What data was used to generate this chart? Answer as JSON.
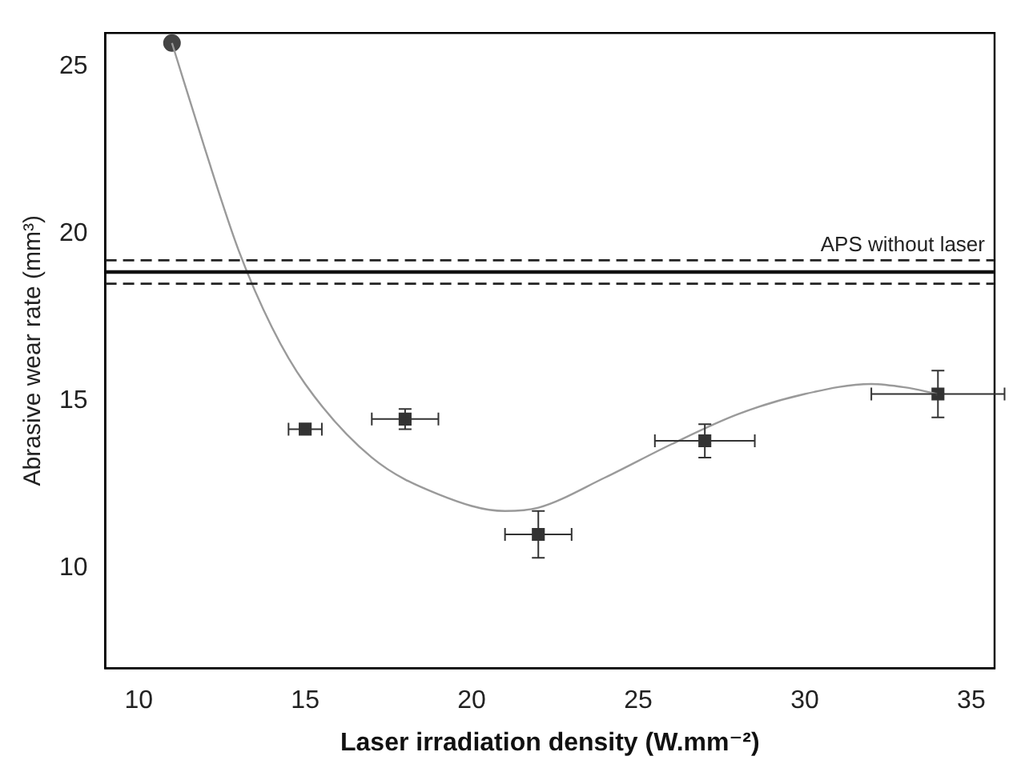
{
  "chart_data": {
    "type": "scatter",
    "xlabel": "Laser irradiation density (W.mm⁻²)",
    "ylabel": "Abrasive wear rate (mm³)",
    "xlim": [
      9,
      35.7
    ],
    "xticks": [
      10,
      15,
      20,
      25,
      30,
      35
    ],
    "ylim": [
      7,
      26
    ],
    "yticks": [
      10,
      15,
      20,
      25
    ],
    "grid": false,
    "legend": false,
    "series": [
      {
        "type": "line",
        "color": "#9a9a9a",
        "marker": "none",
        "x": [
          11,
          12,
          13,
          14,
          15,
          17,
          19,
          21,
          22,
          24,
          26,
          28,
          30,
          32,
          33,
          34
        ],
        "values": [
          25.7,
          22.5,
          19.5,
          17.2,
          15.5,
          13.3,
          12.2,
          11.7,
          11.8,
          12.7,
          13.7,
          14.6,
          15.2,
          15.5,
          15.4,
          15.2
        ]
      },
      {
        "type": "scatter",
        "color": "#444444",
        "marker": "circle",
        "x": [
          11
        ],
        "values": [
          25.7
        ]
      },
      {
        "type": "scatter",
        "color": "#333333",
        "marker": "square",
        "x": [
          15,
          18,
          22,
          27,
          34
        ],
        "values": [
          14.15,
          14.45,
          11.0,
          13.8,
          15.2
        ],
        "errors": [
          null,
          0.3,
          0.7,
          0.5,
          0.7
        ],
        "xerrors": [
          0.5,
          1,
          1,
          1.5,
          2
        ]
      }
    ],
    "ref_lines": [
      {
        "axis": "y",
        "value": 19.2,
        "line_style": "dashed",
        "color": "#222222",
        "label": "APS without laser"
      },
      {
        "axis": "y",
        "value": 18.85,
        "line_style": "solid",
        "color": "#111111"
      },
      {
        "axis": "y",
        "value": 18.5,
        "line_style": "dashed",
        "color": "#222222"
      }
    ]
  }
}
